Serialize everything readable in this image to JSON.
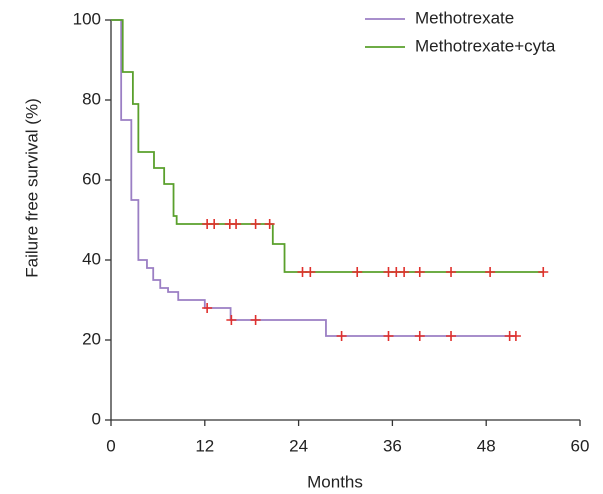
{
  "chart_data": {
    "type": "step",
    "x_label": "Months",
    "y_label": "Failure free survival (%)",
    "xlim": [
      0,
      60
    ],
    "xticks": [
      0,
      12,
      24,
      36,
      48,
      60
    ],
    "ylim": [
      0,
      100
    ],
    "yticks": [
      0,
      20,
      40,
      60,
      80,
      100
    ],
    "censor_color": "#e0302c",
    "series": [
      {
        "name": "Methotrexate",
        "color": "#9b7fc4",
        "x": [
          0,
          1.3,
          2.6,
          3.5,
          4.6,
          5.4,
          6.3,
          7.3,
          8.6,
          12,
          15.3,
          27.5,
          51.8
        ],
        "values": [
          100,
          75,
          55,
          40,
          38,
          35,
          33,
          32,
          30,
          28,
          25,
          21,
          21
        ],
        "censor_x": [
          12.3,
          15.4,
          18.5,
          29.5,
          35.5,
          39.5,
          43.5,
          51,
          51.8
        ],
        "censor_values": [
          28,
          25,
          25,
          21,
          21,
          21,
          21,
          21,
          21
        ]
      },
      {
        "name": "Methotrexate+cyta",
        "color": "#5aa02c",
        "x": [
          0,
          1.5,
          2.8,
          3.5,
          5.5,
          6.8,
          8,
          8.4,
          20.7,
          22.2,
          55.3
        ],
        "values": [
          100,
          87,
          79,
          67,
          63,
          59,
          51,
          49,
          44,
          37,
          37
        ],
        "censor_x": [
          12.3,
          13.2,
          15.2,
          16,
          18.5,
          20.3,
          24.5,
          25.5,
          31.5,
          35.5,
          36.5,
          37.5,
          39.5,
          43.5,
          48.5,
          55.3
        ],
        "censor_values": [
          49,
          49,
          49,
          49,
          49,
          49,
          37,
          37,
          37,
          37,
          37,
          37,
          37,
          37,
          37,
          37
        ]
      }
    ]
  }
}
